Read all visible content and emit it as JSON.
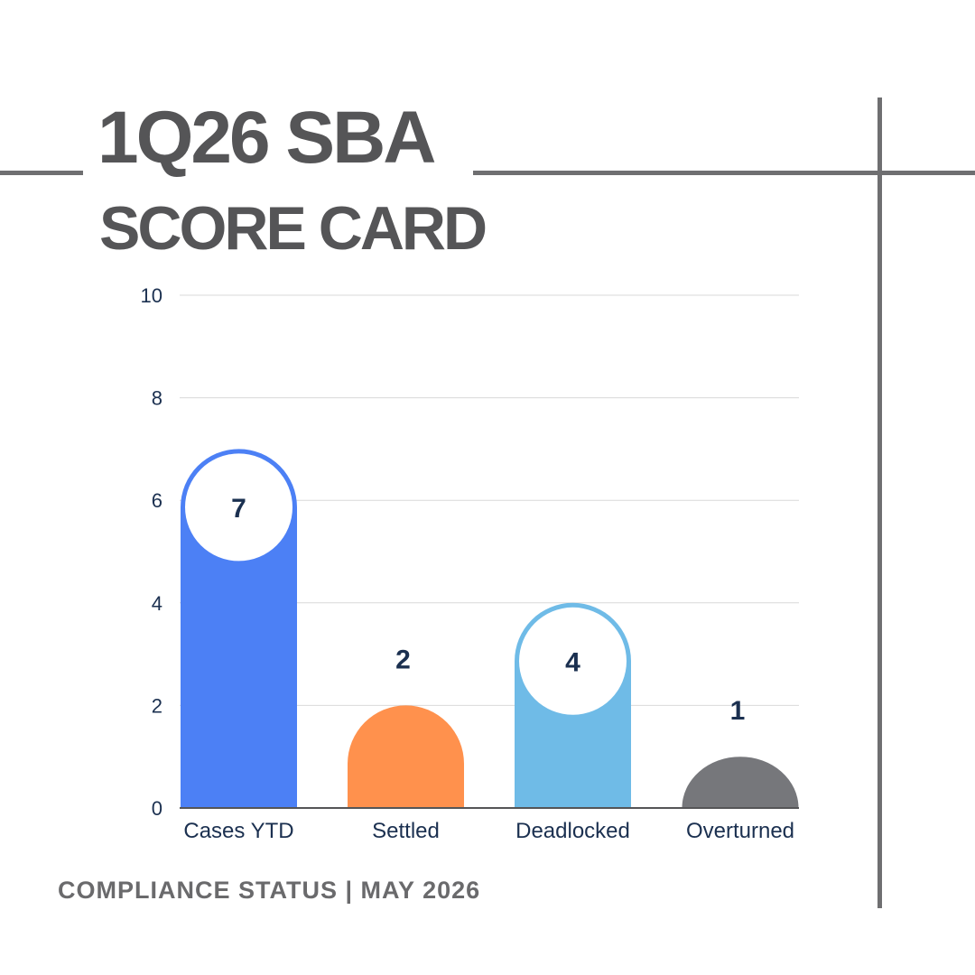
{
  "header": {
    "title_line1": "1Q26 SBA",
    "title_line2": "SCORE CARD"
  },
  "footer": {
    "text": "COMPLIANCE STATUS | MAY 2026"
  },
  "colors": {
    "frame": "#6f6f71",
    "title": "#555557",
    "gridline": "#d9d9d9",
    "axis_text": "#1b3050"
  },
  "chart_data": {
    "type": "bar",
    "title": "",
    "xlabel": "",
    "ylabel": "",
    "ylim": [
      0,
      10
    ],
    "yticks": [
      0,
      2,
      4,
      6,
      8,
      10
    ],
    "grid": true,
    "categories": [
      "Cases YTD",
      "Settled",
      "Deadlocked",
      "Overturned"
    ],
    "values": [
      7,
      2,
      4,
      1
    ],
    "data_labels": [
      "7",
      "2",
      "4",
      "1"
    ],
    "bar_colors": [
      "#4c80f5",
      "#ff914d",
      "#6fbbe7",
      "#76777b"
    ]
  }
}
